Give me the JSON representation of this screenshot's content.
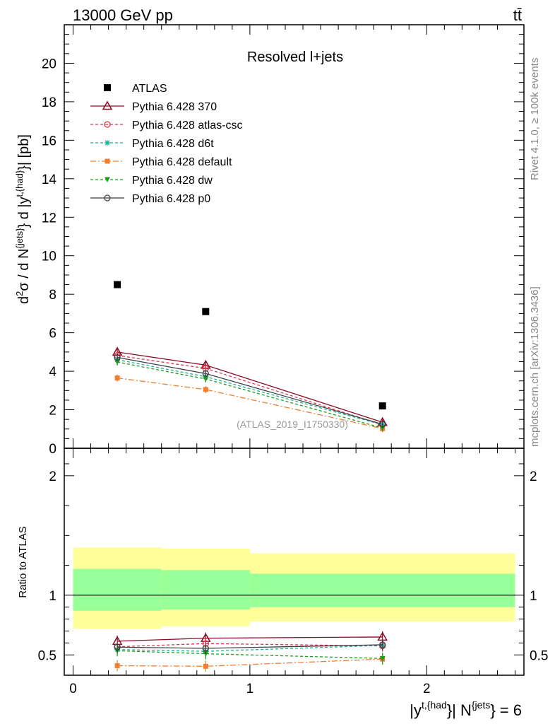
{
  "header": {
    "left": "13000 GeV pp",
    "right": "tt̄"
  },
  "side_labels": {
    "rivet": "Rivet 4.1.0, ≥ 100k events",
    "mcplots": "mcplots.cern.ch [arXiv:1306.3436]"
  },
  "chart_data": [
    {
      "type": "scatter",
      "panel": "main",
      "title": "Resolved l+jets",
      "ylabel": "d²σ / d N^{jets} d |y^{t,{had}}| [pb]",
      "ylabel_parts": {
        "prefix": "d",
        "sup2": "2",
        "sigma": "σ / d N",
        "sup_jets": "{jets}",
        "mid": "} d |y",
        "sup_had": "t,{had}",
        "suffix": "}| [pb]"
      },
      "watermark": "(ATLAS_2019_I1750330)",
      "ylim": [
        0,
        22
      ],
      "xlim": [
        -0.05,
        2.55
      ],
      "y_ticks": [
        0,
        2,
        4,
        6,
        8,
        10,
        12,
        14,
        16,
        18,
        20
      ],
      "y_tick_labels": [
        "0",
        "2",
        "4",
        "6",
        "8",
        "10",
        "12",
        "14",
        "16",
        "18",
        "20"
      ],
      "x": [
        0.25,
        0.75,
        1.75
      ],
      "series": [
        {
          "name": "ATLAS",
          "values": [
            8.5,
            7.1,
            2.2
          ],
          "color": "#000000",
          "marker": "square",
          "dash": ""
        },
        {
          "name": "Pythia 6.428 370",
          "values": [
            5.0,
            4.32,
            1.35
          ],
          "color": "#8b0a24",
          "marker": "triangle",
          "dash": ""
        },
        {
          "name": "Pythia 6.428 atlas-csc",
          "values": [
            4.82,
            4.15,
            1.22
          ],
          "color": "#e0304a",
          "marker": "circle-open",
          "dash": "4,3"
        },
        {
          "name": "Pythia 6.428 d6t",
          "values": [
            4.6,
            3.72,
            1.22
          ],
          "color": "#1bb09a",
          "marker": "star",
          "dash": "4,3"
        },
        {
          "name": "Pythia 6.428 default",
          "values": [
            3.65,
            3.05,
            1.02
          ],
          "color": "#f08030",
          "marker": "square-small",
          "dash": "8,3,2,3"
        },
        {
          "name": "Pythia 6.428 dw",
          "values": [
            4.48,
            3.6,
            1.05
          ],
          "color": "#18a018",
          "marker": "triangle-down",
          "dash": "4,3"
        },
        {
          "name": "Pythia 6.428 p0",
          "values": [
            4.72,
            3.88,
            1.25
          ],
          "color": "#404040",
          "marker": "circle-open",
          "dash": ""
        }
      ]
    },
    {
      "type": "line",
      "panel": "ratio",
      "ylabel": "Ratio to ATLAS",
      "ylim": [
        0.33,
        2.23
      ],
      "xlim": [
        -0.05,
        2.55
      ],
      "y_ticks": [
        0.5,
        1,
        2
      ],
      "y_tick_labels": [
        "0.5",
        "1",
        "2"
      ],
      "x_ticks": [
        0,
        1,
        2
      ],
      "x_tick_labels": [
        "0",
        "1",
        "2"
      ],
      "xlabel_parts": {
        "a": "|y",
        "sup1": "t,{had",
        "b": "}| N",
        "sup2": "{jets",
        "c": "} = 6"
      },
      "bands": [
        {
          "x_range": [
            0,
            0.5
          ],
          "yellow": [
            0.72,
            1.4
          ],
          "green": [
            0.87,
            1.22
          ]
        },
        {
          "x_range": [
            0.5,
            1.0
          ],
          "yellow": [
            0.74,
            1.39
          ],
          "green": [
            0.88,
            1.21
          ]
        },
        {
          "x_range": [
            1.0,
            2.5
          ],
          "yellow": [
            0.78,
            1.35
          ],
          "green": [
            0.9,
            1.18
          ]
        }
      ],
      "x": [
        0.25,
        0.75,
        1.75
      ],
      "series": [
        {
          "name": "Pythia 6.428 370",
          "values": [
            0.615,
            0.64,
            0.65
          ],
          "color": "#8b0a24",
          "marker": "triangle",
          "dash": ""
        },
        {
          "name": "Pythia 6.428 atlas-csc",
          "values": [
            0.568,
            0.595,
            0.575
          ],
          "color": "#e0304a",
          "marker": "circle-open",
          "dash": "4,3"
        },
        {
          "name": "Pythia 6.428 d6t",
          "values": [
            0.545,
            0.53,
            0.58
          ],
          "color": "#1bb09a",
          "marker": "star",
          "dash": "4,3"
        },
        {
          "name": "Pythia 6.428 default",
          "values": [
            0.41,
            0.405,
            0.465
          ],
          "color": "#f08030",
          "marker": "square-small",
          "dash": "8,3,2,3"
        },
        {
          "name": "Pythia 6.428 dw",
          "values": [
            0.535,
            0.51,
            0.47
          ],
          "color": "#18a018",
          "marker": "triangle-down",
          "dash": "4,3"
        },
        {
          "name": "Pythia 6.428 p0",
          "values": [
            0.565,
            0.555,
            0.585
          ],
          "color": "#404040",
          "marker": "circle-open",
          "dash": ""
        }
      ]
    }
  ]
}
